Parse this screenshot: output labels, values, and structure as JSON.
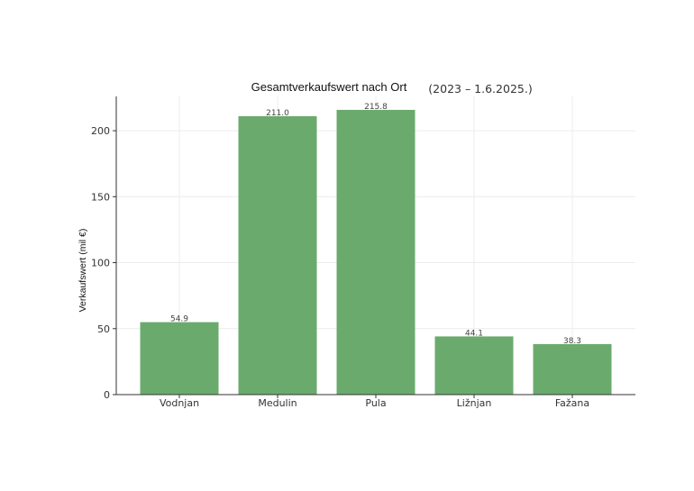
{
  "chart_data": {
    "type": "bar",
    "title": "Gesamtverkaufswert nach Ort",
    "subtitle": "(2023 – 1.6.2025.)",
    "xlabel": "",
    "ylabel": "Verkaufswert  (mil €)",
    "categories": [
      "Vodnjan",
      "Medulin",
      "Pula",
      "Ližnjan",
      "Fažana"
    ],
    "values": [
      54.9,
      211.0,
      215.8,
      44.1,
      38.3
    ],
    "data_labels": [
      "54.9",
      "211.0",
      "215.8",
      "44.1",
      "38.3"
    ],
    "ylim": [
      0,
      226
    ],
    "yticks": [
      0,
      50,
      100,
      150,
      200
    ],
    "grid": true,
    "bar_color": "#6aab6d",
    "grid_color": "#ececec",
    "axis_color": "#333333"
  }
}
